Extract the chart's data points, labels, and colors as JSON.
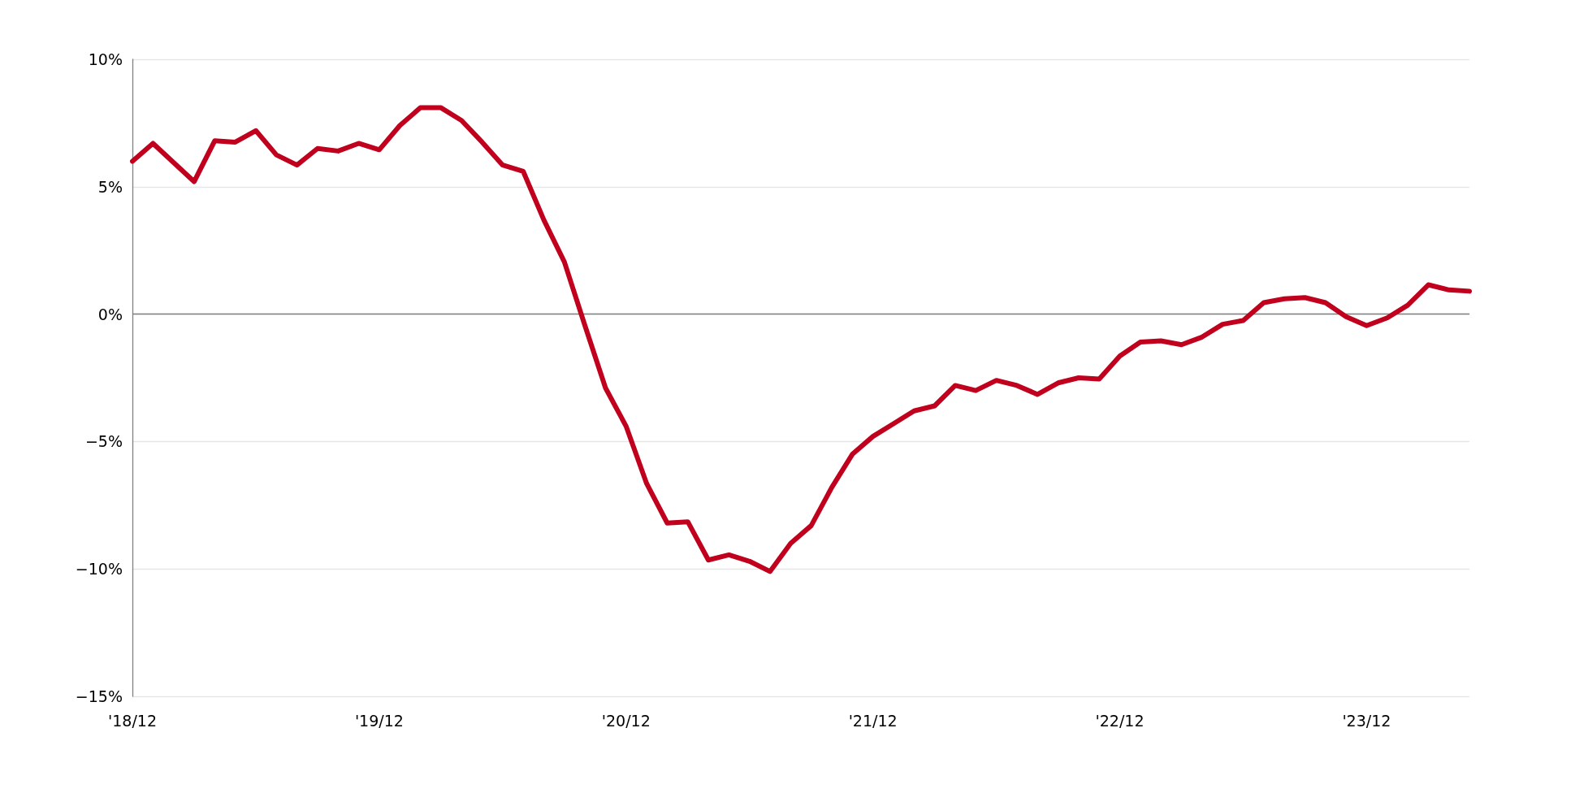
{
  "chart_data": {
    "type": "line",
    "categories": [
      "'18/12",
      null,
      null,
      null,
      null,
      null,
      null,
      null,
      null,
      null,
      null,
      null,
      "'19/12",
      null,
      null,
      null,
      null,
      null,
      null,
      null,
      null,
      null,
      null,
      null,
      "'20/12",
      null,
      null,
      null,
      null,
      null,
      null,
      null,
      null,
      null,
      null,
      null,
      "'21/12",
      null,
      null,
      null,
      null,
      null,
      null,
      null,
      null,
      null,
      null,
      null,
      "'22/12",
      null,
      null,
      null,
      null,
      null,
      null,
      null,
      null,
      null,
      null,
      null,
      "'23/12",
      null,
      null,
      null,
      null,
      null
    ],
    "series": [
      {
        "color": "#c0001d",
        "values": [
          6.0,
          6.7,
          5.95,
          5.2,
          6.8,
          6.75,
          7.2,
          6.25,
          5.85,
          6.5,
          6.4,
          6.7,
          6.45,
          7.4,
          8.1,
          8.1,
          7.6,
          6.75,
          5.85,
          5.6,
          3.7,
          2.05,
          -0.45,
          -2.9,
          -4.4,
          -6.65,
          -8.2,
          -8.15,
          -9.65,
          -9.45,
          -9.7,
          -10.1,
          -9.0,
          -8.3,
          -6.8,
          -5.5,
          -4.8,
          -4.3,
          -3.8,
          -3.6,
          -2.8,
          -3.0,
          -2.6,
          -2.8,
          -3.15,
          -2.7,
          -2.5,
          -2.55,
          -1.65,
          -1.1,
          -1.05,
          -1.2,
          -0.9,
          -0.4,
          -0.25,
          0.45,
          0.6,
          0.65,
          0.45,
          -0.1,
          -0.45,
          -0.15,
          0.35,
          1.15,
          0.95,
          0.9
        ]
      }
    ],
    "ylim": [
      -15,
      10
    ],
    "yticks": [
      {
        "value": -15,
        "label": "−15%"
      },
      {
        "value": -10,
        "label": "−10%"
      },
      {
        "value": -5,
        "label": "−5%"
      },
      {
        "value": 0,
        "label": "0%"
      },
      {
        "value": 5,
        "label": "5%"
      },
      {
        "value": 10,
        "label": "10%"
      }
    ],
    "grid": "y",
    "marker": "none",
    "line_style": "solid",
    "ref_lines": [
      {
        "axis": "y",
        "value": 0,
        "color": "#808080",
        "line_style": "solid"
      }
    ]
  }
}
